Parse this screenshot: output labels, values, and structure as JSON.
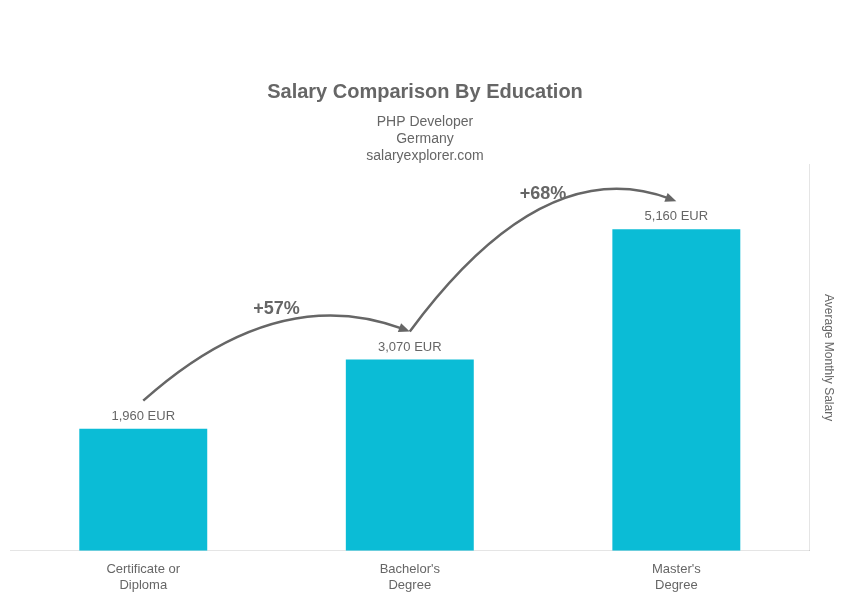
{
  "chart_data": {
    "type": "bar",
    "title": "Salary Comparison By Education",
    "subtitle": "PHP Developer",
    "ylabel": "Average Monthly Salary",
    "categories": [
      "Certificate or\nDiploma",
      "Bachelor's\nDegree",
      "Master's\nDegree"
    ],
    "values": [
      1960,
      3070,
      5160
    ],
    "value_labels": [
      "1,960 EUR",
      "3,070 EUR",
      "5,160 EUR"
    ],
    "data_labels": true,
    "color": "#0bbcd6",
    "ylim": [
      0,
      6200
    ],
    "tick_labels": "x",
    "grid": false,
    "annotations": [
      {
        "text": "Germany"
      },
      {
        "text": "salaryexplorer.com"
      },
      {
        "text": "+57%",
        "from": "Certificate or\nDiploma",
        "to": "Bachelor's\nDegree"
      },
      {
        "text": "+68%",
        "from": "Bachelor's\nDegree",
        "to": "Master's\nDegree"
      }
    ]
  }
}
